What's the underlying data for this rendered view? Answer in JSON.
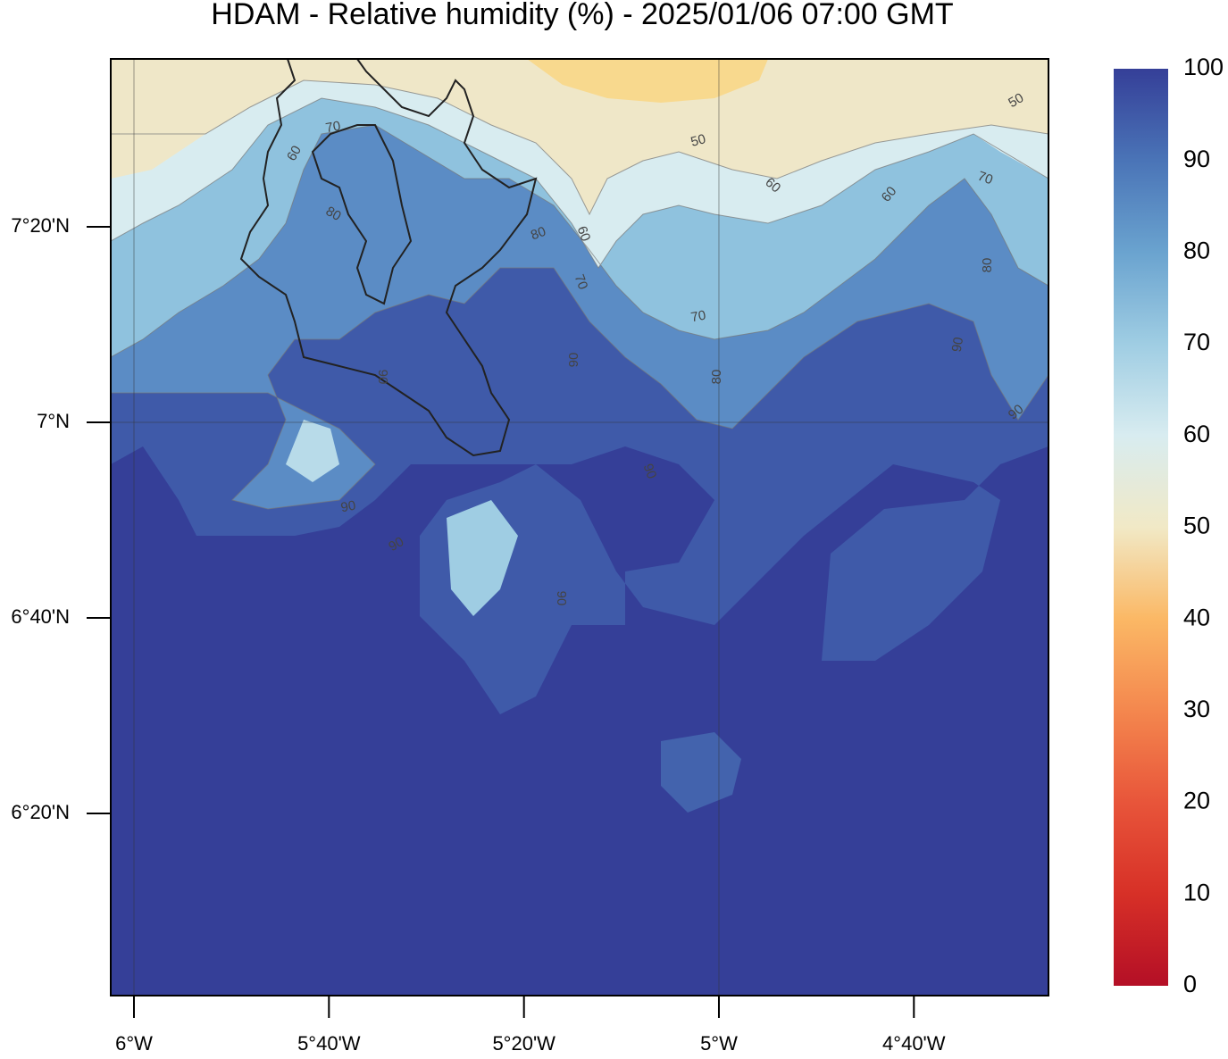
{
  "title": "HDAM - Relative humidity (%)  -  2025/01/06  07:00 GMT",
  "map": {
    "xlim": [
      -6.0397,
      -4.4366
    ],
    "ylim": [
      6.0228,
      7.6195
    ],
    "xticks": [
      {
        "value": -6,
        "label": "6°W"
      },
      {
        "value": -5.6667,
        "label": "5°40'W"
      },
      {
        "value": -5.3333,
        "label": "5°20'W"
      },
      {
        "value": -5,
        "label": "5°W"
      },
      {
        "value": -4.6667,
        "label": "4°40'W"
      }
    ],
    "yticks": [
      {
        "value": 7.3333,
        "label": "7°20'N"
      },
      {
        "value": 7,
        "label": "7°N"
      },
      {
        "value": 6.6667,
        "label": "6°40'N"
      },
      {
        "value": 6.3333,
        "label": "6°20'N"
      }
    ],
    "xgrid": [
      -6,
      -5
    ],
    "ygrid": [
      7
    ]
  },
  "colorbar": {
    "lim": [
      0,
      100
    ],
    "ticks": [
      0,
      10,
      20,
      30,
      40,
      50,
      60,
      70,
      80,
      90,
      100
    ],
    "colors": [
      "#b40f26",
      "#d73027",
      "#e8553a",
      "#f4874e",
      "#fbb865",
      "#f1e9c6",
      "#d8ecf0",
      "#9fcde3",
      "#6aa3cf",
      "#4a74b7",
      "#353f98"
    ]
  },
  "contour_labels": [
    70,
    60,
    80,
    50,
    50,
    60,
    60,
    70,
    80,
    60,
    70,
    70,
    80,
    90,
    90,
    90,
    80,
    90,
    90,
    90,
    90,
    90
  ]
}
